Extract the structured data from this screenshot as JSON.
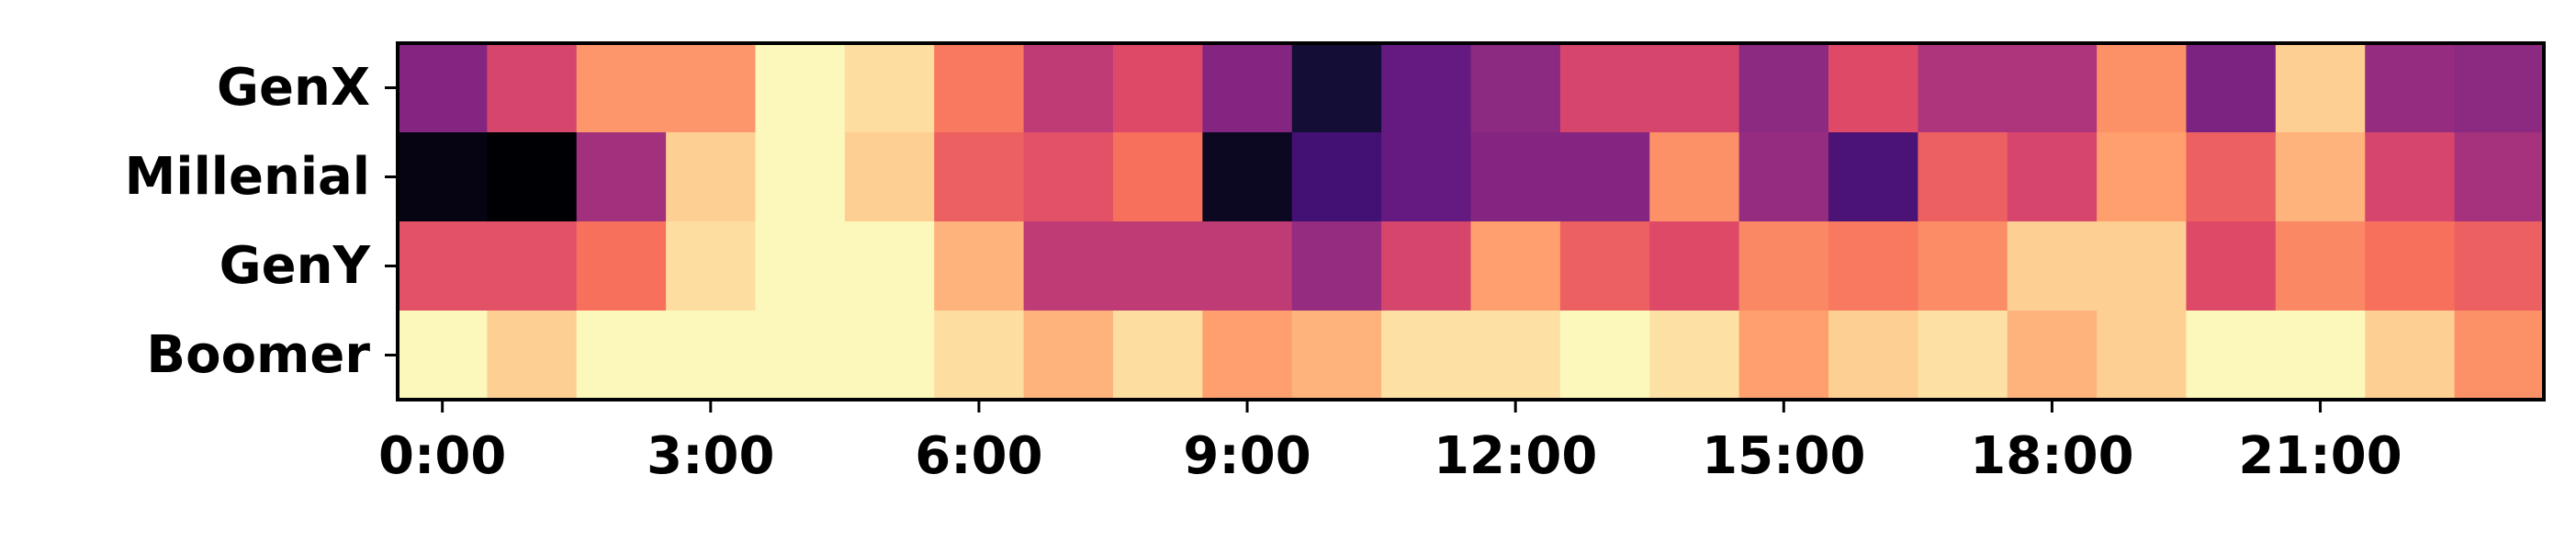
{
  "chart_data": {
    "type": "heatmap",
    "title": "",
    "xlabel": "",
    "ylabel": "",
    "colormap": "magma",
    "value_range": [
      0,
      1
    ],
    "rows": [
      "GenX",
      "Millenial",
      "GenY",
      "Boomer"
    ],
    "columns": [
      "0:00",
      "1:00",
      "2:00",
      "3:00",
      "4:00",
      "5:00",
      "6:00",
      "7:00",
      "8:00",
      "9:00",
      "10:00",
      "11:00",
      "12:00",
      "13:00",
      "14:00",
      "15:00",
      "16:00",
      "17:00",
      "18:00",
      "19:00",
      "20:00",
      "21:00",
      "22:00",
      "23:00"
    ],
    "x_tick_labels": [
      "0:00",
      "3:00",
      "6:00",
      "9:00",
      "12:00",
      "15:00",
      "18:00",
      "21:00"
    ],
    "values": [
      [
        0.38,
        0.58,
        0.78,
        0.78,
        0.99,
        0.93,
        0.72,
        0.52,
        0.6,
        0.38,
        0.1,
        0.3,
        0.4,
        0.58,
        0.58,
        0.4,
        0.6,
        0.48,
        0.48,
        0.77,
        0.36,
        0.9,
        0.42,
        0.4
      ],
      [
        0.03,
        0.0,
        0.45,
        0.9,
        0.99,
        0.9,
        0.66,
        0.62,
        0.7,
        0.06,
        0.22,
        0.3,
        0.38,
        0.38,
        0.77,
        0.42,
        0.24,
        0.66,
        0.58,
        0.8,
        0.66,
        0.84,
        0.58,
        0.46
      ],
      [
        0.62,
        0.62,
        0.7,
        0.93,
        0.99,
        0.99,
        0.84,
        0.52,
        0.52,
        0.52,
        0.42,
        0.58,
        0.8,
        0.66,
        0.6,
        0.75,
        0.72,
        0.76,
        0.9,
        0.9,
        0.6,
        0.75,
        0.7,
        0.66
      ],
      [
        0.99,
        0.9,
        0.99,
        0.99,
        0.99,
        0.99,
        0.93,
        0.84,
        0.93,
        0.8,
        0.84,
        0.94,
        0.94,
        0.99,
        0.94,
        0.8,
        0.9,
        0.94,
        0.84,
        0.9,
        0.99,
        0.99,
        0.9,
        0.77
      ]
    ]
  }
}
